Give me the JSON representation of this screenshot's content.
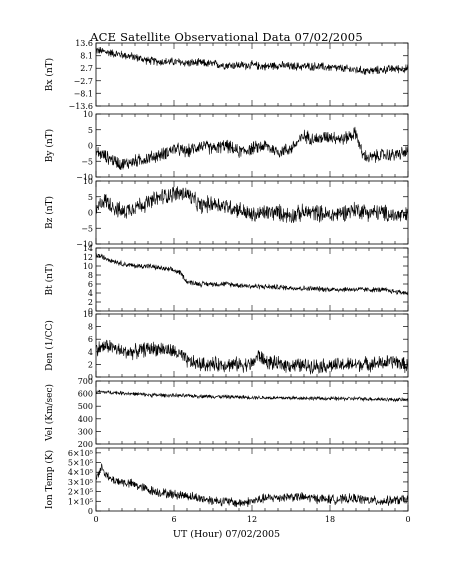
{
  "chart_data": {
    "type": "line",
    "title": "ACE Satellite Observational Data   07/02/2005",
    "xlabel": "UT (Hour)   07/02/2005",
    "x_ticks": [
      "0",
      "6",
      "12",
      "18",
      "0"
    ],
    "xlim": [
      0,
      24
    ],
    "grid": false,
    "panels": [
      {
        "name": "Bx",
        "ylabel": "Bx (nT)",
        "ylim": [
          -13.6,
          13.6
        ],
        "y_ticks": [
          {
            "v": 13.6,
            "label": "13.6"
          },
          {
            "v": 8.1,
            "label": "8.1"
          },
          {
            "v": 2.7,
            "label": "2.7"
          },
          {
            "v": -2.7,
            "label": "−2.7"
          },
          {
            "v": -8.1,
            "label": "−8.1"
          },
          {
            "v": -13.6,
            "label": "−13.6"
          }
        ],
        "points": [
          [
            0,
            10.5
          ],
          [
            1,
            9.5
          ],
          [
            2,
            8.5
          ],
          [
            3,
            7.5
          ],
          [
            4,
            6
          ],
          [
            5,
            5.5
          ],
          [
            6,
            5.5
          ],
          [
            7,
            5
          ],
          [
            8,
            5
          ],
          [
            9,
            4.5
          ],
          [
            10,
            4
          ],
          [
            11,
            4
          ],
          [
            12,
            4
          ],
          [
            13,
            3.5
          ],
          [
            14,
            4
          ],
          [
            15,
            3.5
          ],
          [
            16,
            3.5
          ],
          [
            17,
            3.5
          ],
          [
            18,
            3
          ],
          [
            19,
            2.5
          ],
          [
            20,
            2
          ],
          [
            21,
            1.5
          ],
          [
            22,
            2
          ],
          [
            23,
            2.5
          ],
          [
            24,
            2.5
          ]
        ],
        "noise": 2.2
      },
      {
        "name": "By",
        "ylabel": "By (nT)",
        "ylim": [
          -10,
          10
        ],
        "y_ticks": [
          {
            "v": 10,
            "label": "10"
          },
          {
            "v": 5,
            "label": "5"
          },
          {
            "v": 0,
            "label": "0"
          },
          {
            "v": -5,
            "label": "−5"
          },
          {
            "v": -10,
            "label": "−10"
          }
        ],
        "points": [
          [
            0,
            -2
          ],
          [
            1,
            -4
          ],
          [
            2,
            -6
          ],
          [
            3,
            -5
          ],
          [
            4,
            -4
          ],
          [
            5,
            -3
          ],
          [
            6,
            -1
          ],
          [
            7,
            -2
          ],
          [
            8,
            0
          ],
          [
            9,
            -1
          ],
          [
            10,
            0
          ],
          [
            11,
            -2
          ],
          [
            12,
            -1
          ],
          [
            13,
            0
          ],
          [
            14,
            -2
          ],
          [
            15,
            -1
          ],
          [
            16,
            3
          ],
          [
            17,
            2
          ],
          [
            18,
            3
          ],
          [
            19,
            2
          ],
          [
            20,
            4
          ],
          [
            20.5,
            -3
          ],
          [
            21,
            -4
          ],
          [
            22,
            -3
          ],
          [
            23,
            -3
          ],
          [
            24,
            -2
          ]
        ],
        "noise": 2.5
      },
      {
        "name": "Bz",
        "ylabel": "Bz (nT)",
        "ylim": [
          -10,
          10
        ],
        "y_ticks": [
          {
            "v": 10,
            "label": "10"
          },
          {
            "v": 5,
            "label": "5"
          },
          {
            "v": 0,
            "label": "0"
          },
          {
            "v": -5,
            "label": "−5"
          },
          {
            "v": -10,
            "label": "−10"
          }
        ],
        "points": [
          [
            0,
            0
          ],
          [
            0.5,
            4
          ],
          [
            1,
            3
          ],
          [
            2,
            0
          ],
          [
            3,
            2
          ],
          [
            4,
            3
          ],
          [
            5,
            5
          ],
          [
            6,
            6
          ],
          [
            7,
            6
          ],
          [
            8,
            2
          ],
          [
            9,
            3
          ],
          [
            10,
            2
          ],
          [
            11,
            1
          ],
          [
            12,
            -1
          ],
          [
            13,
            0
          ],
          [
            14,
            0
          ],
          [
            15,
            -1
          ],
          [
            16,
            0
          ],
          [
            17,
            0
          ],
          [
            18,
            -1
          ],
          [
            19,
            0
          ],
          [
            20,
            1
          ],
          [
            21,
            0
          ],
          [
            22,
            0
          ],
          [
            23,
            -1
          ],
          [
            24,
            -1
          ]
        ],
        "noise": 3.2
      },
      {
        "name": "Bt",
        "ylabel": "Bt (nT)",
        "ylim": [
          0,
          14
        ],
        "y_ticks": [
          {
            "v": 14,
            "label": "14"
          },
          {
            "v": 12,
            "label": "12"
          },
          {
            "v": 10,
            "label": "10"
          },
          {
            "v": 8,
            "label": "8"
          },
          {
            "v": 6,
            "label": "6"
          },
          {
            "v": 4,
            "label": "4"
          },
          {
            "v": 2,
            "label": "2"
          },
          {
            "v": 0,
            "label": "0"
          }
        ],
        "points": [
          [
            0,
            12.5
          ],
          [
            1,
            11.5
          ],
          [
            2,
            10.5
          ],
          [
            3,
            10
          ],
          [
            4,
            10
          ],
          [
            5,
            9.5
          ],
          [
            6,
            9
          ],
          [
            6.5,
            8.5
          ],
          [
            7,
            6.5
          ],
          [
            8,
            6
          ],
          [
            9,
            6
          ],
          [
            10,
            6
          ],
          [
            12,
            5.5
          ],
          [
            14,
            5.3
          ],
          [
            16,
            5
          ],
          [
            18,
            4.8
          ],
          [
            20,
            4.8
          ],
          [
            22,
            4.7
          ],
          [
            23,
            4.3
          ],
          [
            24,
            4
          ]
        ],
        "noise": 0.7
      },
      {
        "name": "Den",
        "ylabel": "Den (1/CC)",
        "ylim": [
          0,
          10
        ],
        "y_ticks": [
          {
            "v": 10,
            "label": "10"
          },
          {
            "v": 8,
            "label": "8"
          },
          {
            "v": 6,
            "label": "6"
          },
          {
            "v": 4,
            "label": "4"
          },
          {
            "v": 2,
            "label": "2"
          },
          {
            "v": 0,
            "label": "0"
          }
        ],
        "points": [
          [
            0,
            4.5
          ],
          [
            1,
            5
          ],
          [
            2,
            4
          ],
          [
            3,
            4
          ],
          [
            4,
            4.5
          ],
          [
            5,
            4.5
          ],
          [
            6,
            4
          ],
          [
            6.5,
            3.5
          ],
          [
            7,
            2.5
          ],
          [
            8,
            2
          ],
          [
            10,
            2
          ],
          [
            12,
            2
          ],
          [
            12.5,
            3.5
          ],
          [
            13,
            2.5
          ],
          [
            14,
            2
          ],
          [
            16,
            1.8
          ],
          [
            18,
            1.8
          ],
          [
            20,
            2
          ],
          [
            22,
            2.2
          ],
          [
            23,
            2.5
          ],
          [
            24,
            1.7
          ]
        ],
        "noise": 1.4
      },
      {
        "name": "Vel",
        "ylabel": "Vel (Km/sec)",
        "ylim": [
          200,
          700
        ],
        "y_ticks": [
          {
            "v": 700,
            "label": "700"
          },
          {
            "v": 600,
            "label": "600"
          },
          {
            "v": 500,
            "label": "500"
          },
          {
            "v": 400,
            "label": "400"
          },
          {
            "v": 300,
            "label": "300"
          },
          {
            "v": 200,
            "label": "200"
          }
        ],
        "points": [
          [
            0,
            615
          ],
          [
            2,
            605
          ],
          [
            4,
            590
          ],
          [
            6,
            585
          ],
          [
            8,
            580
          ],
          [
            10,
            575
          ],
          [
            12,
            570
          ],
          [
            14,
            565
          ],
          [
            16,
            565
          ],
          [
            18,
            560
          ],
          [
            20,
            560
          ],
          [
            22,
            555
          ],
          [
            24,
            550
          ]
        ],
        "noise": 18
      },
      {
        "name": "Ion Temp",
        "ylabel": "Ion Temp (K)",
        "ylim": [
          0,
          650000
        ],
        "y_ticks": [
          {
            "v": 600000,
            "label": "6×10⁵"
          },
          {
            "v": 500000,
            "label": "5×10⁵"
          },
          {
            "v": 400000,
            "label": "4×10⁵"
          },
          {
            "v": 300000,
            "label": "3×10⁵"
          },
          {
            "v": 200000,
            "label": "2×10⁵"
          },
          {
            "v": 100000,
            "label": "1×10⁵"
          },
          {
            "v": 0,
            "label": "0"
          }
        ],
        "points": [
          [
            0,
            350000
          ],
          [
            0.5,
            450000
          ],
          [
            1,
            330000
          ],
          [
            2,
            300000
          ],
          [
            3,
            270000
          ],
          [
            4,
            220000
          ],
          [
            5,
            190000
          ],
          [
            6,
            170000
          ],
          [
            7,
            160000
          ],
          [
            8,
            130000
          ],
          [
            9,
            110000
          ],
          [
            10,
            100000
          ],
          [
            11,
            80000
          ],
          [
            12,
            100000
          ],
          [
            13,
            130000
          ],
          [
            14,
            140000
          ],
          [
            15,
            150000
          ],
          [
            16,
            140000
          ],
          [
            17,
            130000
          ],
          [
            18,
            120000
          ],
          [
            19,
            120000
          ],
          [
            20,
            130000
          ],
          [
            21,
            110000
          ],
          [
            22,
            100000
          ],
          [
            23,
            110000
          ],
          [
            24,
            120000
          ]
        ],
        "noise": 60000
      }
    ]
  }
}
